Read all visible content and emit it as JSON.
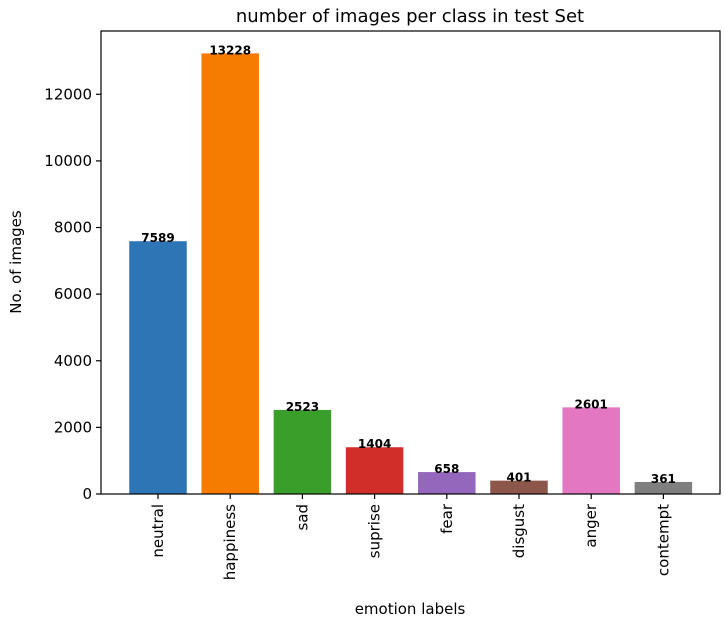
{
  "chart_data": {
    "type": "bar",
    "title": "number of images per class in test Set",
    "xlabel": "emotion labels",
    "ylabel": "No. of images",
    "categories": [
      "neutral",
      "happiness",
      "sad",
      "suprise",
      "fear",
      "disgust",
      "anger",
      "contempt"
    ],
    "values": [
      7589,
      13228,
      2523,
      1404,
      658,
      401,
      2601,
      361
    ],
    "colors": [
      "#2e75b6",
      "#f57c00",
      "#3a9e2a",
      "#d12e2a",
      "#9467bd",
      "#8c564b",
      "#e377c2",
      "#7f7f7f"
    ],
    "yticks": [
      0,
      2000,
      4000,
      6000,
      8000,
      10000,
      12000
    ],
    "ylim": [
      0,
      13900
    ],
    "grid": false,
    "legend": "none"
  }
}
